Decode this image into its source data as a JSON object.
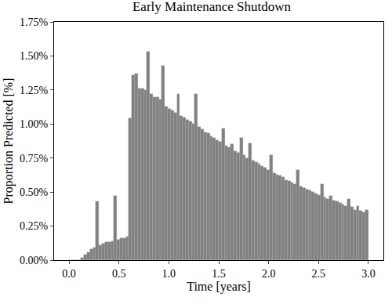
{
  "chart_data": {
    "type": "histogram",
    "title": "Early Maintenance Shutdown",
    "x_label": "Time [years]",
    "y_label": "Proportion Predicted [%]",
    "bins": [
      0,
      0.03,
      0.06,
      0.09,
      0.12,
      0.15,
      0.18,
      0.21,
      0.24,
      0.27,
      0.3,
      0.33,
      0.36,
      0.39,
      0.42,
      0.45,
      0.48,
      0.51,
      0.54,
      0.57,
      0.6,
      0.63,
      0.66,
      0.69,
      0.72,
      0.75,
      0.78,
      0.81,
      0.84,
      0.87,
      0.9,
      0.93,
      0.96,
      0.99,
      1.02,
      1.05,
      1.08,
      1.11,
      1.14,
      1.17,
      1.2,
      1.23,
      1.26,
      1.29,
      1.32,
      1.35,
      1.38,
      1.41,
      1.44,
      1.47,
      1.5,
      1.53,
      1.56,
      1.59,
      1.62,
      1.65,
      1.68,
      1.71,
      1.74,
      1.77,
      1.8,
      1.83,
      1.86,
      1.89,
      1.92,
      1.95,
      1.98,
      2.01,
      2.04,
      2.07,
      2.1,
      2.13,
      2.16,
      2.19,
      2.22,
      2.25,
      2.28,
      2.31,
      2.34,
      2.37,
      2.4,
      2.43,
      2.46,
      2.49,
      2.52,
      2.55,
      2.58,
      2.61,
      2.64,
      2.67,
      2.7,
      2.73,
      2.76,
      2.79,
      2.82,
      2.85,
      2.88,
      2.91,
      2.94,
      2.97,
      3.0
    ],
    "values": [
      0,
      0,
      0,
      0,
      0.02,
      0.04,
      0.06,
      0.08,
      0.09,
      0.43,
      0.11,
      0.12,
      0.13,
      0.13,
      0.14,
      0.47,
      0.15,
      0.16,
      0.16,
      0.17,
      1.04,
      1.36,
      1.37,
      1.26,
      1.26,
      1.25,
      1.53,
      1.22,
      1.2,
      1.2,
      1.18,
      1.43,
      1.13,
      1.11,
      1.1,
      1.08,
      1.22,
      1.06,
      1.05,
      1.03,
      1.02,
      1.0,
      1.22,
      0.98,
      0.96,
      0.94,
      0.93,
      0.91,
      0.9,
      0.88,
      0.87,
      0.97,
      0.84,
      0.83,
      0.85,
      0.8,
      0.79,
      0.9,
      0.77,
      0.75,
      0.86,
      0.73,
      0.72,
      0.71,
      0.69,
      0.68,
      0.66,
      0.77,
      0.64,
      0.63,
      0.62,
      0.61,
      0.59,
      0.58,
      0.57,
      0.56,
      0.66,
      0.54,
      0.53,
      0.52,
      0.51,
      0.5,
      0.49,
      0.48,
      0.56,
      0.46,
      0.45,
      0.47,
      0.44,
      0.43,
      0.42,
      0.41,
      0.4,
      0.45,
      0.39,
      0.37,
      0.4,
      0.36,
      0.35,
      0.37
    ],
    "color": "#808080",
    "xlim": [
      -0.15,
      3.15
    ],
    "xticks": [
      {
        "value": 0,
        "label": "0.0"
      },
      {
        "value": 0.5,
        "label": "0.5"
      },
      {
        "value": 1,
        "label": "1.0"
      },
      {
        "value": 1.5,
        "label": "1.5"
      },
      {
        "value": 2,
        "label": "2.0"
      },
      {
        "value": 2.5,
        "label": "2.5"
      },
      {
        "value": 3,
        "label": "3.0"
      }
    ],
    "ylim": [
      0,
      1.75
    ],
    "yticks": [
      {
        "value": 0,
        "label": "0.00%"
      },
      {
        "value": 0.25,
        "label": "0.25%"
      },
      {
        "value": 0.5,
        "label": "0.50%"
      },
      {
        "value": 0.75,
        "label": "0.75%"
      },
      {
        "value": 1,
        "label": "1.00%"
      },
      {
        "value": 1.25,
        "label": "1.25%"
      },
      {
        "value": 1.5,
        "label": "1.50%"
      },
      {
        "value": 1.75,
        "label": "1.75%"
      }
    ],
    "grid": false
  }
}
